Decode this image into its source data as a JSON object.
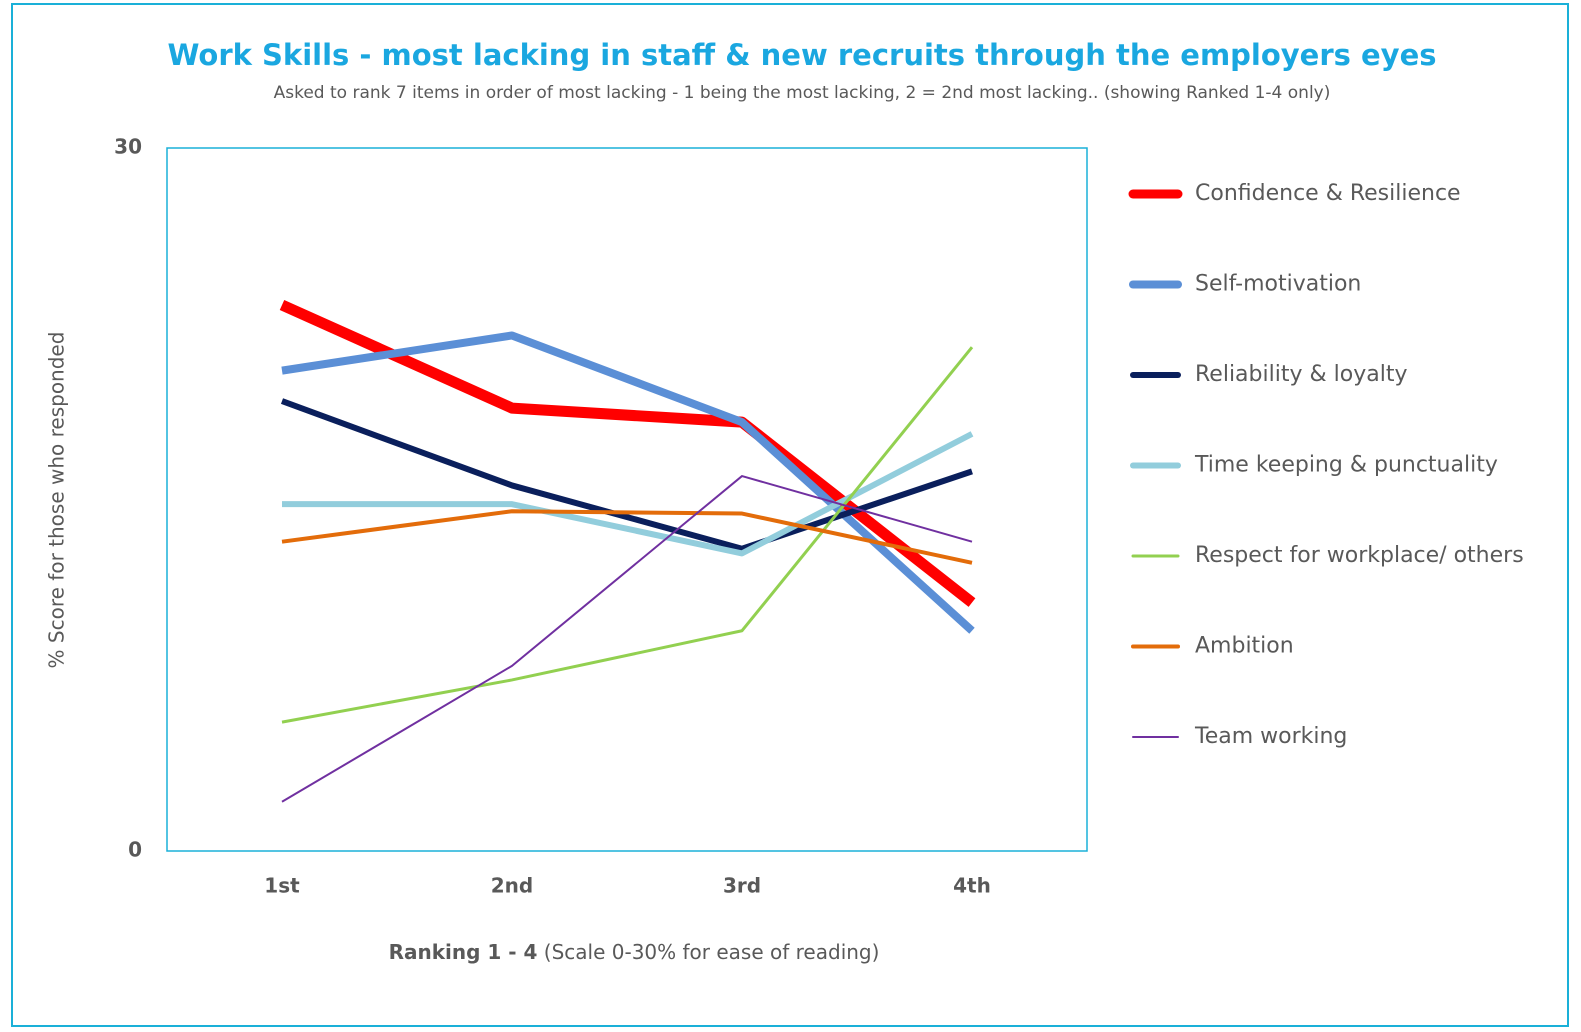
{
  "chart_data": {
    "type": "line",
    "title": "Work Skills - most lacking in staff & new recruits through the employers eyes",
    "subtitle": "Asked to rank 7 items in order of most lacking - 1 being the most lacking, 2 = 2nd most lacking.. (showing Ranked 1-4 only)",
    "y_label": "% Score for those who responded",
    "x_label": "Ranking 1 - 4",
    "x_label_note": "(Scale 0-30% for ease of reading)",
    "categories": [
      "1st",
      "2nd",
      "3rd",
      "4th"
    ],
    "ylim": [
      0,
      30
    ],
    "yticks": [
      0,
      30
    ],
    "grid": false,
    "legend": "right",
    "series": [
      {
        "name": "Confidence & Resilience",
        "color": "#ff0000",
        "width": 11,
        "values": [
          23.3,
          18.9,
          18.3,
          10.6
        ]
      },
      {
        "name": "Self-motivation",
        "color": "#5b8fd6",
        "width": 8,
        "values": [
          20.5,
          22.0,
          18.3,
          9.4
        ]
      },
      {
        "name": "Reliability & loyalty",
        "color": "#0a1f5c",
        "width": 6,
        "values": [
          19.2,
          15.6,
          12.9,
          16.2
        ]
      },
      {
        "name": "Time keeping & punctuality",
        "color": "#92cddc",
        "width": 6,
        "values": [
          14.8,
          14.8,
          12.7,
          17.8
        ]
      },
      {
        "name": "Respect for workplace/ others",
        "color": "#92d050",
        "width": 3,
        "values": [
          5.5,
          7.3,
          9.4,
          21.5
        ]
      },
      {
        "name": "Ambition",
        "color": "#e36c0a",
        "width": 4,
        "values": [
          13.2,
          14.5,
          14.4,
          12.3
        ]
      },
      {
        "name": "Team working",
        "color": "#7030a0",
        "width": 2,
        "values": [
          2.1,
          7.9,
          16.0,
          13.2
        ]
      }
    ]
  }
}
